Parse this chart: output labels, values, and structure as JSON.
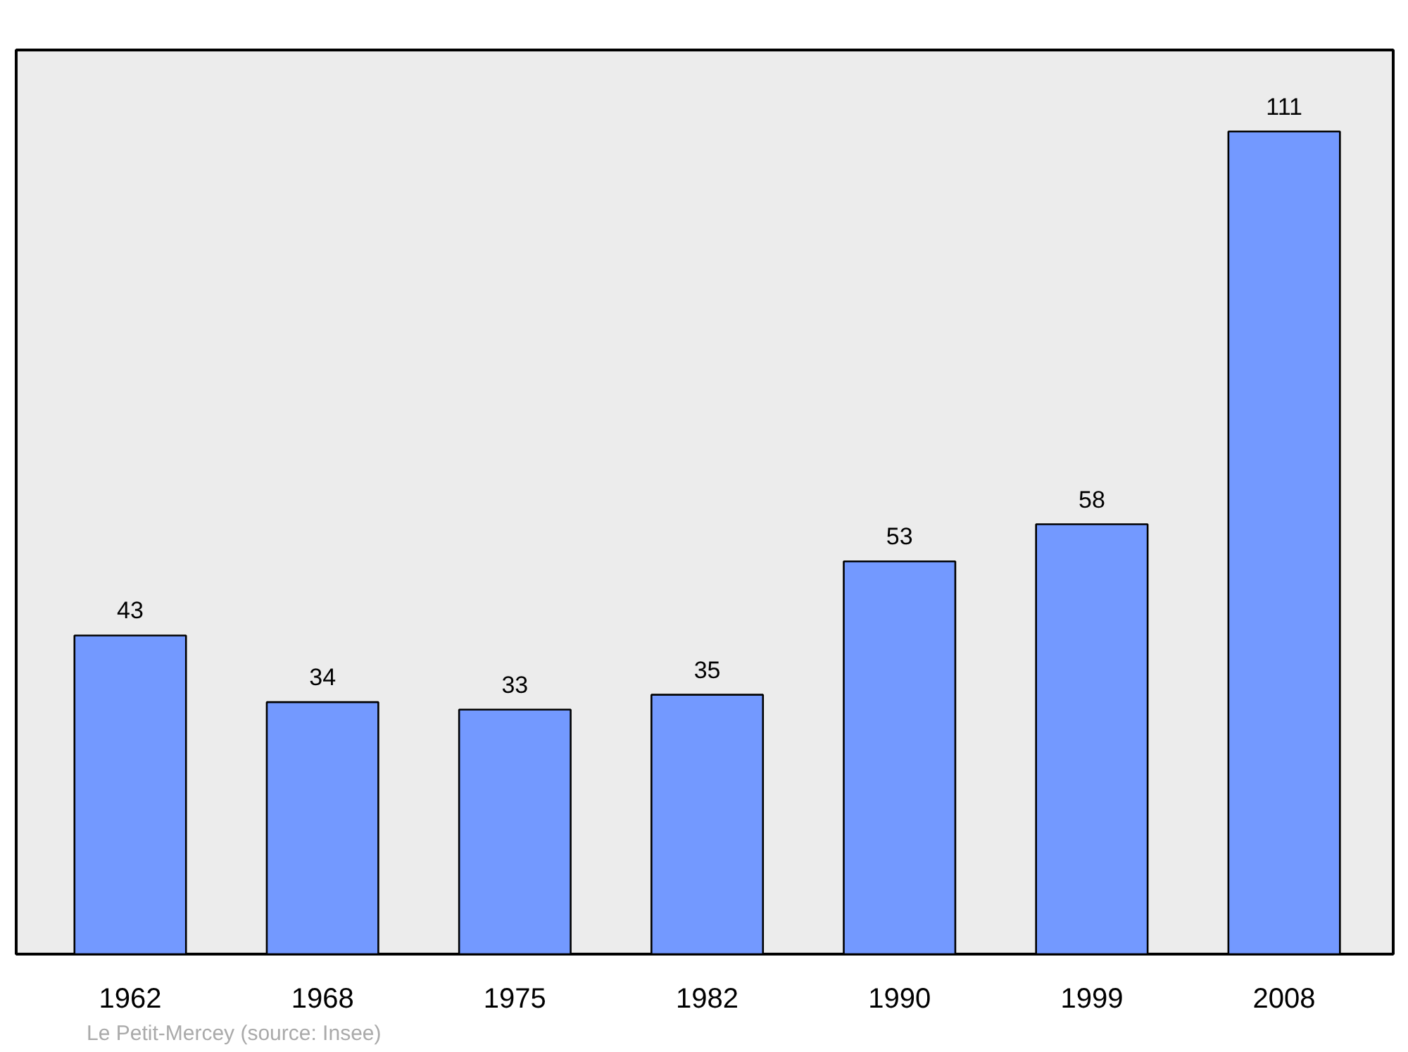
{
  "chart_data": {
    "type": "bar",
    "categories": [
      "1962",
      "1968",
      "1975",
      "1982",
      "1990",
      "1999",
      "2008"
    ],
    "values": [
      43,
      34,
      33,
      35,
      53,
      58,
      111
    ],
    "color": "#7399ff",
    "data_labels": true,
    "ylim": [
      0,
      122
    ],
    "tick_labels": "x",
    "grid": false,
    "annotations": [
      "Le Petit-Mercey    (source: Insee)"
    ]
  }
}
